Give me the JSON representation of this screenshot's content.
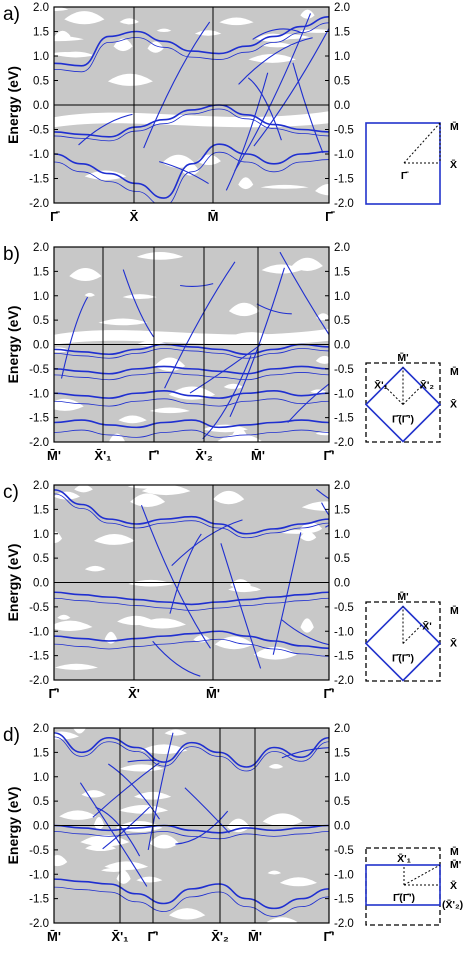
{
  "figure": {
    "colors": {
      "band": "#c8c8c8",
      "surface_state": "#1f2fd0",
      "axis": "#000000",
      "bz": "#2233cc"
    },
    "ylabel": "Energy (eV)",
    "y_ticks": [
      "2.0",
      "1.5",
      "1.0",
      "0.5",
      "0.0",
      "-0.5",
      "-1.0",
      "-1.5",
      "-2.0"
    ]
  },
  "chart_data": [
    {
      "panel": "a)",
      "type": "area",
      "xlabel": "",
      "ylabel": "Energy (eV)",
      "ylim": [
        -2.0,
        2.0
      ],
      "x_ticks": [
        "Γ̄",
        "X̄",
        "M̄",
        "Γ̄"
      ],
      "series": [
        {
          "values": [
            -0.55,
            -0.6,
            -0.65,
            -0.45,
            -0.3,
            -0.1,
            0.0,
            -0.2,
            -0.4,
            -0.5,
            -0.55
          ]
        },
        {
          "values": [
            0.85,
            0.8,
            1.4,
            1.5,
            1.3,
            1.1,
            1.05,
            1.2,
            1.4,
            1.6,
            1.8
          ]
        },
        {
          "values": [
            -1.0,
            -1.2,
            -1.4,
            -1.6,
            -1.9,
            -1.2,
            -0.8,
            -1.0,
            -1.2,
            -1.0,
            -0.95
          ]
        }
      ],
      "bz_labels": [
        "M̄",
        "X̄",
        "Γ̄"
      ]
    },
    {
      "panel": "b)",
      "type": "area",
      "xlabel": "",
      "ylabel": "Energy (eV)",
      "ylim": [
        -2.0,
        2.0
      ],
      "x_ticks": [
        "M̄'",
        "X̄'₁",
        "Γ̄'",
        "X̄'₂",
        "M̄'",
        "Γ̄'"
      ],
      "series": [
        {
          "values": [
            -0.1,
            -0.15,
            -0.2,
            -0.1,
            0.0,
            -0.05,
            -0.1,
            -0.2,
            -0.1,
            0.0,
            -0.05
          ]
        },
        {
          "values": [
            -0.5,
            -0.55,
            -0.6,
            -0.5,
            -0.45,
            -0.5,
            -0.55,
            -0.6,
            -0.5,
            -0.45,
            -0.5
          ]
        },
        {
          "values": [
            -1.0,
            -1.05,
            -1.1,
            -1.0,
            -0.95,
            -1.05,
            -1.1,
            -1.0,
            -0.95,
            -1.05,
            -1.0
          ]
        },
        {
          "values": [
            -1.6,
            -1.55,
            -1.65,
            -1.7,
            -1.6,
            -1.55,
            -1.7,
            -1.65,
            -1.6,
            -1.55,
            -1.6
          ]
        }
      ],
      "bz_labels": [
        "M̄'",
        "M̄",
        "X̄'₁",
        "X̄'₂",
        "X̄",
        "Γ̄(Γ̄')"
      ]
    },
    {
      "panel": "c)",
      "type": "area",
      "xlabel": "",
      "ylabel": "Energy (eV)",
      "ylim": [
        -2.0,
        2.0
      ],
      "x_ticks": [
        "Γ̄'",
        "X̄'",
        "M̄'",
        "Γ̄'"
      ],
      "series": [
        {
          "values": [
            1.9,
            1.6,
            1.3,
            1.2,
            1.3,
            1.35,
            1.2,
            1.0,
            1.1,
            1.2,
            1.3
          ]
        },
        {
          "values": [
            -0.2,
            -0.25,
            -0.3,
            -0.35,
            -0.4,
            -0.45,
            -0.4,
            -0.35,
            -0.3,
            -0.25,
            -0.2
          ]
        },
        {
          "values": [
            -1.1,
            -1.15,
            -1.2,
            -1.15,
            -1.1,
            -1.05,
            -1.0,
            -1.1,
            -1.2,
            -1.3,
            -1.35
          ]
        }
      ],
      "bz_labels": [
        "M̄'",
        "M̄",
        "X̄'",
        "X̄",
        "Γ̄(Γ̄')"
      ]
    },
    {
      "panel": "d)",
      "type": "area",
      "xlabel": "",
      "ylabel": "Energy (eV)",
      "ylim": [
        -2.0,
        2.0
      ],
      "x_ticks": [
        "M̄'",
        "X̄'₁",
        "Γ̄'",
        "X̄'₂",
        "M̄'",
        "Γ̄'"
      ],
      "series": [
        {
          "values": [
            1.9,
            1.5,
            1.8,
            1.6,
            1.3,
            1.7,
            1.5,
            1.2,
            1.6,
            1.4,
            1.8
          ]
        },
        {
          "values": [
            0.0,
            -0.05,
            -0.1,
            -0.05,
            0.0,
            -0.1,
            -0.15,
            -0.05,
            -0.1,
            -0.05,
            0.0
          ]
        },
        {
          "values": [
            -1.1,
            -1.15,
            -1.2,
            -1.4,
            -1.6,
            -1.3,
            -1.2,
            -1.5,
            -1.7,
            -1.5,
            -1.3
          ]
        }
      ],
      "bz_labels": [
        "M̄",
        "M̄'",
        "X̄'₁",
        "X̄",
        "(X̄'₂)",
        "Γ̄(Γ̄')"
      ]
    }
  ]
}
